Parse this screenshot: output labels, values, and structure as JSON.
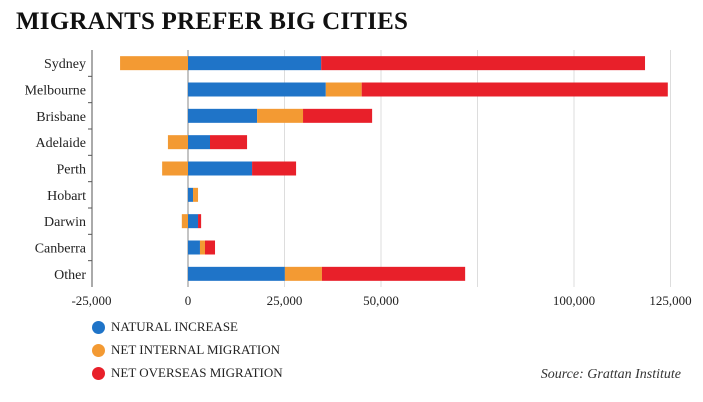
{
  "chart_data": {
    "type": "bar",
    "stacked": true,
    "orientation": "horizontal",
    "title": "MIGRANTS PREFER BIG CITIES",
    "source": "Source: Grattan Institute",
    "categories": [
      "Sydney",
      "Melbourne",
      "Brisbane",
      "Adelaide",
      "Perth",
      "Hobart",
      "Darwin",
      "Canberra",
      "Other"
    ],
    "series": [
      {
        "name": "NATURAL INCREASE",
        "color": "#1f74c8",
        "values": [
          34500,
          35700,
          17900,
          5700,
          16600,
          1300,
          2600,
          3100,
          25100
        ]
      },
      {
        "name": "NET INTERNAL MIGRATION",
        "color": "#f39a33",
        "values": [
          -17600,
          9300,
          11900,
          -5200,
          -6700,
          1300,
          -1600,
          1300,
          9600
        ]
      },
      {
        "name": "NET OVERSEAS MIGRATION",
        "color": "#e8202a",
        "values": [
          83900,
          79300,
          17900,
          9600,
          11400,
          0,
          800,
          2600,
          37100
        ]
      }
    ],
    "xlim": [
      -27000,
      130000
    ],
    "xticks": [
      -25000,
      0,
      25000,
      50000,
      100000,
      125000
    ],
    "xtick_labels": [
      "-25,000",
      "0",
      "25,000",
      "50,000",
      "100,000",
      "125,000"
    ],
    "gridlines": [
      25000,
      50000,
      75000,
      100000,
      125000
    ],
    "legend": "bottom-left"
  }
}
